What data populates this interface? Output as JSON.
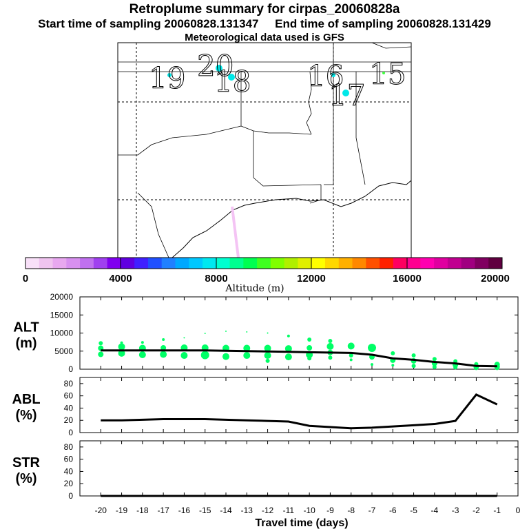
{
  "header": {
    "title": "Retroplume summary for cirpas_20060828a",
    "start_label": "Start time of sampling 20060828.131347",
    "end_label": "End time of sampling 20060828.131429",
    "met_label": "Meteorological data used is GFS"
  },
  "colors": {
    "accent": "#000000",
    "track": "#f4c4f4",
    "plume_main": "#00ff66",
    "scale": [
      "#f8e0f8",
      "#f0c4f0",
      "#e8a8f0",
      "#d890f0",
      "#c070f0",
      "#a040f0",
      "#8000f0",
      "#6000e0",
      "#4020ff",
      "#2050ff",
      "#2080ff",
      "#00a8ff",
      "#00c8ff",
      "#00e8f0",
      "#00ffd0",
      "#00ff90",
      "#00ff50",
      "#40ff20",
      "#80ff00",
      "#b0f000",
      "#e0f000",
      "#ffff00",
      "#ffd800",
      "#ffb000",
      "#ff8800",
      "#ff5000",
      "#ff2000",
      "#ff0060",
      "#ff0090",
      "#ff00b0",
      "#e000a0",
      "#c00090",
      "#a00080",
      "#800060",
      "#600040"
    ]
  },
  "map": {
    "date_labels": [
      "19",
      "20",
      "18",
      "16",
      "17",
      "15"
    ]
  },
  "colorbar": {
    "tick_labels": [
      "0",
      "4000",
      "8000",
      "12000",
      "16000",
      "20000"
    ],
    "label": "Altitude (m)"
  },
  "chart_data": [
    {
      "type": "line",
      "panel": "ALT",
      "title": "ALT",
      "ylabel": "(m)",
      "ylim": [
        0,
        20000
      ],
      "yticks": [
        0,
        5000,
        10000,
        15000,
        20000
      ],
      "x": [
        -20,
        -19,
        -18,
        -17,
        -16,
        -15,
        -14,
        -13,
        -12,
        -11,
        -10,
        -9,
        -8,
        -7,
        -6,
        -5,
        -4,
        -3,
        -2,
        -1
      ],
      "values": [
        5200,
        5200,
        5200,
        5200,
        5200,
        5200,
        5100,
        5000,
        4900,
        4800,
        4700,
        4600,
        4500,
        4000,
        3000,
        2600,
        2000,
        1600,
        900,
        800
      ],
      "bubbles": [
        {
          "x": -20,
          "y": 7200,
          "r": 3
        },
        {
          "x": -20,
          "y": 5800,
          "r": 4
        },
        {
          "x": -20,
          "y": 4100,
          "r": 4
        },
        {
          "x": -19,
          "y": 7300,
          "r": 2
        },
        {
          "x": -19,
          "y": 6200,
          "r": 5
        },
        {
          "x": -19,
          "y": 4400,
          "r": 5
        },
        {
          "x": -18,
          "y": 7400,
          "r": 2
        },
        {
          "x": -18,
          "y": 5800,
          "r": 5
        },
        {
          "x": -18,
          "y": 4000,
          "r": 5
        },
        {
          "x": -17,
          "y": 8200,
          "r": 2
        },
        {
          "x": -17,
          "y": 5900,
          "r": 4
        },
        {
          "x": -17,
          "y": 4100,
          "r": 5
        },
        {
          "x": -16,
          "y": 8700,
          "r": 1
        },
        {
          "x": -16,
          "y": 5900,
          "r": 5
        },
        {
          "x": -16,
          "y": 3800,
          "r": 5
        },
        {
          "x": -15,
          "y": 9900,
          "r": 1
        },
        {
          "x": -15,
          "y": 5900,
          "r": 5
        },
        {
          "x": -15,
          "y": 3900,
          "r": 6
        },
        {
          "x": -14,
          "y": 10500,
          "r": 1
        },
        {
          "x": -14,
          "y": 5800,
          "r": 5
        },
        {
          "x": -14,
          "y": 3500,
          "r": 5
        },
        {
          "x": -13,
          "y": 10300,
          "r": 1
        },
        {
          "x": -13,
          "y": 5800,
          "r": 5
        },
        {
          "x": -13,
          "y": 3800,
          "r": 5
        },
        {
          "x": -12,
          "y": 10000,
          "r": 1
        },
        {
          "x": -12,
          "y": 5800,
          "r": 5
        },
        {
          "x": -12,
          "y": 3800,
          "r": 5
        },
        {
          "x": -12,
          "y": 2300,
          "r": 3
        },
        {
          "x": -11,
          "y": 9200,
          "r": 2
        },
        {
          "x": -11,
          "y": 5700,
          "r": 5
        },
        {
          "x": -11,
          "y": 3400,
          "r": 5
        },
        {
          "x": -10,
          "y": 8200,
          "r": 3
        },
        {
          "x": -10,
          "y": 5900,
          "r": 4
        },
        {
          "x": -10,
          "y": 4000,
          "r": 5
        },
        {
          "x": -10,
          "y": 3000,
          "r": 3
        },
        {
          "x": -9,
          "y": 7800,
          "r": 3
        },
        {
          "x": -9,
          "y": 6300,
          "r": 5
        },
        {
          "x": -9,
          "y": 4600,
          "r": 4
        },
        {
          "x": -9,
          "y": 3200,
          "r": 3
        },
        {
          "x": -8,
          "y": 6400,
          "r": 5
        },
        {
          "x": -8,
          "y": 3800,
          "r": 3
        },
        {
          "x": -8,
          "y": 2600,
          "r": 2
        },
        {
          "x": -7,
          "y": 5900,
          "r": 6
        },
        {
          "x": -7,
          "y": 3400,
          "r": 4
        },
        {
          "x": -7,
          "y": 1300,
          "r": 2
        },
        {
          "x": -6,
          "y": 4400,
          "r": 3
        },
        {
          "x": -6,
          "y": 2500,
          "r": 4
        },
        {
          "x": -6,
          "y": 1100,
          "r": 2
        },
        {
          "x": -5,
          "y": 3800,
          "r": 3
        },
        {
          "x": -5,
          "y": 2300,
          "r": 4
        },
        {
          "x": -5,
          "y": 900,
          "r": 3
        },
        {
          "x": -4,
          "y": 2800,
          "r": 3
        },
        {
          "x": -4,
          "y": 1600,
          "r": 4
        },
        {
          "x": -4,
          "y": 600,
          "r": 3
        },
        {
          "x": -3,
          "y": 2200,
          "r": 3
        },
        {
          "x": -3,
          "y": 1200,
          "r": 4
        },
        {
          "x": -3,
          "y": 500,
          "r": 3
        },
        {
          "x": -2,
          "y": 1400,
          "r": 3
        },
        {
          "x": -2,
          "y": 700,
          "r": 4
        },
        {
          "x": -2,
          "y": 300,
          "r": 3
        },
        {
          "x": -1,
          "y": 1300,
          "r": 4
        },
        {
          "x": -1,
          "y": 700,
          "r": 4
        },
        {
          "x": -1,
          "y": 300,
          "r": 3
        }
      ]
    },
    {
      "type": "line",
      "panel": "ABL",
      "title": "ABL",
      "ylabel": "(%)",
      "ylim": [
        0,
        90
      ],
      "yticks": [
        0,
        20,
        40,
        60,
        80
      ],
      "x": [
        -20,
        -19,
        -18,
        -17,
        -16,
        -15,
        -14,
        -13,
        -12,
        -11,
        -10,
        -9,
        -8,
        -7,
        -6,
        -5,
        -4,
        -3,
        -2,
        -1
      ],
      "values": [
        20,
        20,
        21,
        22,
        22,
        22,
        21,
        20,
        19,
        18,
        11,
        9,
        7,
        8,
        10,
        12,
        14,
        19,
        62,
        46
      ]
    },
    {
      "type": "line",
      "panel": "STR",
      "title": "STR",
      "ylabel": "(%)",
      "ylim": [
        0,
        90
      ],
      "yticks": [
        0,
        20,
        40,
        60,
        80
      ],
      "x": [
        -20,
        -19,
        -18,
        -17,
        -16,
        -15,
        -14,
        -13,
        -12,
        -11,
        -10,
        -9,
        -8,
        -7,
        -6,
        -5,
        -4,
        -3,
        -2,
        -1
      ],
      "values": [
        0,
        0,
        0,
        0,
        0,
        0,
        0,
        0,
        0,
        0,
        0,
        0,
        0,
        0,
        0,
        0,
        0,
        0,
        0,
        0
      ],
      "xlabel": "Travel time (days)",
      "xticks": [
        -20,
        -19,
        -18,
        -17,
        -16,
        -15,
        -14,
        -13,
        -12,
        -11,
        -10,
        -9,
        -8,
        -7,
        -6,
        -5,
        -4,
        -3,
        -2,
        -1,
        0
      ]
    }
  ]
}
